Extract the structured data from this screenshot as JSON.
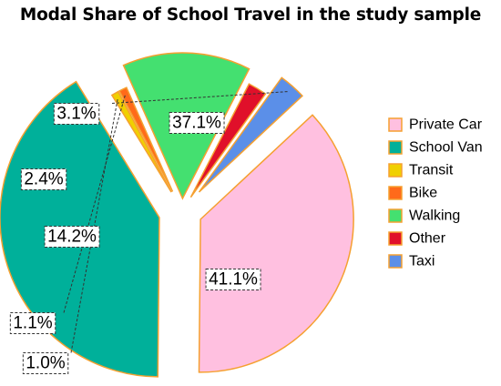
{
  "chart_data": {
    "type": "pie",
    "title": "Modal Share of School Travel in the study sample",
    "categories": [
      "Private Car",
      "School Van",
      "Transit",
      "Bike",
      "Walking",
      "Other",
      "Taxi"
    ],
    "values": [
      37.1,
      41.1,
      1.0,
      1.1,
      14.2,
      2.4,
      3.1
    ],
    "labels": [
      "37.1%",
      "41.1%",
      "1.0%",
      "1.1%",
      "14.2%",
      "2.4%",
      "3.1%"
    ],
    "colors": [
      "#FFC0E0",
      "#00B09A",
      "#F0D000",
      "#FF6A1A",
      "#44E070",
      "#E0102A",
      "#5B8FE8"
    ],
    "slice_border_color": "#F5A030",
    "exploded": true,
    "legend_position": "right"
  }
}
